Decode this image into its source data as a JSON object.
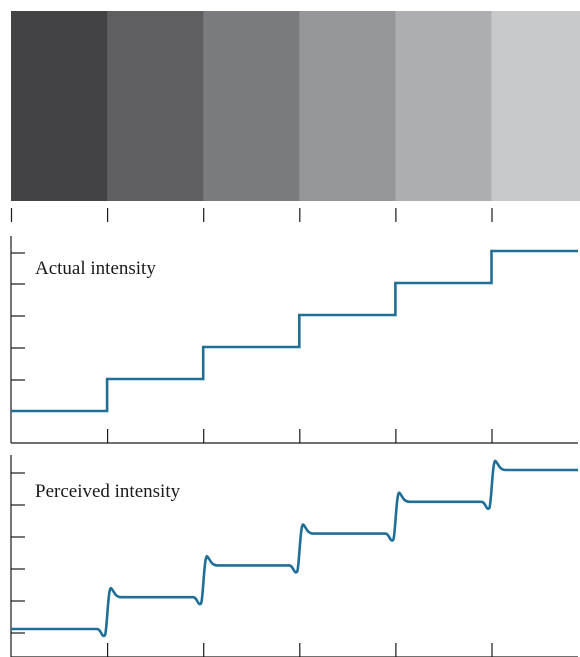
{
  "bands": {
    "colors": [
      "#434345",
      "#5f5f61",
      "#7a7b7e",
      "#959699",
      "#adaeb1",
      "#c8c9cb"
    ]
  },
  "actual": {
    "label": "Actual intensity",
    "levels": [
      1,
      2,
      3,
      4,
      5,
      6
    ]
  },
  "perceived": {
    "label": "Perceived intensity",
    "levels": [
      1,
      2,
      3,
      4,
      5,
      6
    ],
    "effect": "mach-band overshoot and undershoot at each step edge"
  },
  "colors": {
    "curve": "#1f6f97",
    "axis": "#1a1a1a"
  },
  "chart_data": [
    {
      "type": "line",
      "title": "",
      "series": [
        {
          "name": "Actual intensity",
          "x": [
            0,
            1,
            1,
            2,
            2,
            3,
            3,
            4,
            4,
            5,
            5,
            6
          ],
          "y": [
            1,
            1,
            2,
            2,
            3,
            3,
            4,
            4,
            5,
            5,
            6,
            6
          ]
        }
      ],
      "xlabel": "",
      "ylabel": "",
      "xlim": [
        0,
        6
      ],
      "ylim": [
        0,
        6.5
      ]
    },
    {
      "type": "line",
      "title": "",
      "series": [
        {
          "name": "Perceived intensity",
          "x": [
            0,
            1,
            2,
            3,
            4,
            5,
            6
          ],
          "y": [
            1,
            2,
            3,
            4,
            5,
            6,
            6
          ]
        }
      ],
      "xlabel": "",
      "ylabel": "",
      "xlim": [
        0,
        6
      ],
      "ylim": [
        0,
        6.5
      ]
    }
  ]
}
